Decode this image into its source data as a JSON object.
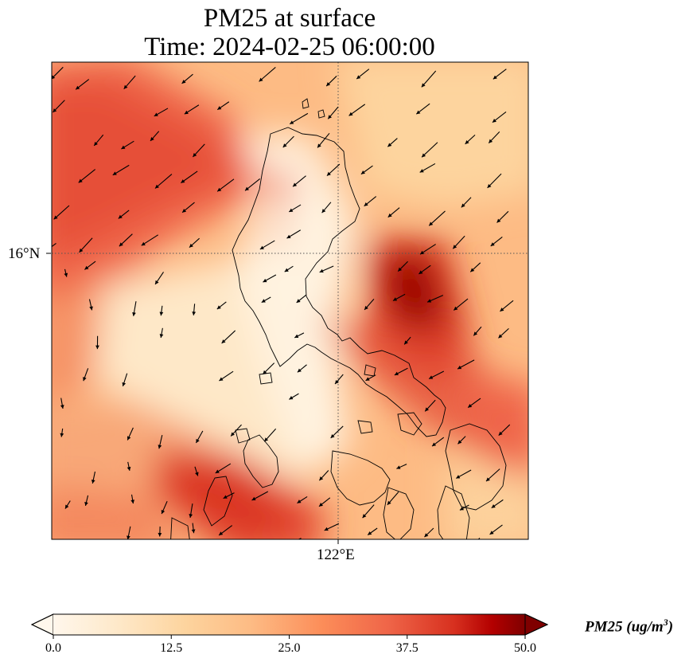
{
  "title": {
    "line1": "PM25 at surface",
    "line2": "Time: 2024-02-25 06:00:00"
  },
  "axes": {
    "lat_ticks": [
      "16°N"
    ],
    "lon_ticks": [
      "122°E"
    ],
    "gridlines": "dotted"
  },
  "colorbar": {
    "ticks": [
      "0.0",
      "12.5",
      "25.0",
      "37.5",
      "50.0"
    ],
    "min": 0,
    "max": 50,
    "extend": "both",
    "colormap": "OrRd",
    "label_main": "PM25 (ug/m",
    "label_exp": "3",
    "label_close": ")"
  },
  "colors": {
    "low": "#fff7ec",
    "mid": "#fc8d59",
    "high": "#7f0000",
    "coastline": "#000000",
    "wind_arrow": "#000000"
  }
}
